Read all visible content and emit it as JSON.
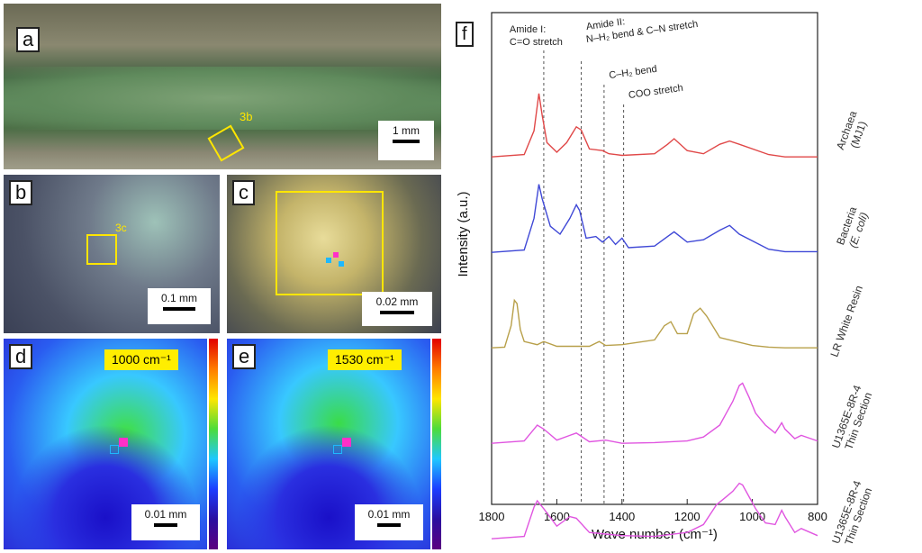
{
  "panels": {
    "a": {
      "label": "a",
      "region_label": "3b",
      "scale": "1 mm"
    },
    "b": {
      "label": "b",
      "region_label": "3c",
      "scale": "0.1 mm"
    },
    "c": {
      "label": "c",
      "scale": "0.02 mm"
    },
    "d": {
      "label": "d",
      "wavenumber": "1000 cm⁻¹",
      "scale": "0.01 mm"
    },
    "e": {
      "label": "e",
      "wavenumber": "1530 cm⁻¹",
      "scale": "0.01 mm"
    }
  },
  "colors": {
    "yellow": "#ffe600",
    "accent_magenta": "#ff2fc8",
    "accent_cyan": "#1eb8ff"
  },
  "chart_data": {
    "type": "line",
    "panel_label": "f",
    "xlabel": "Wave number (cm⁻¹)",
    "ylabel": "Intensity (a.u.)",
    "xlim": [
      1800,
      800
    ],
    "x_ticks": [
      "1800",
      "1600",
      "1400",
      "1200",
      "1000",
      "800"
    ],
    "vlines": [
      {
        "x": 1640,
        "label": "Amide I:\nC=O stretch"
      },
      {
        "x": 1525,
        "label": "Amide II:\nN–H₂ bend & C–N stretch"
      },
      {
        "x": 1455,
        "label": "C–H₂ bend"
      },
      {
        "x": 1395,
        "label": "COO stretch"
      }
    ],
    "series": [
      {
        "name": "Archaea (MJ1)",
        "color": "#e04848",
        "offset": 4,
        "x": [
          1800,
          1700,
          1670,
          1655,
          1645,
          1630,
          1600,
          1570,
          1540,
          1525,
          1500,
          1460,
          1440,
          1420,
          1400,
          1300,
          1260,
          1240,
          1200,
          1150,
          1100,
          1070,
          1040,
          950,
          900,
          800
        ],
        "y": [
          0.02,
          0.05,
          0.35,
          0.82,
          0.55,
          0.2,
          0.08,
          0.2,
          0.4,
          0.36,
          0.12,
          0.1,
          0.06,
          0.05,
          0.04,
          0.06,
          0.18,
          0.25,
          0.1,
          0.06,
          0.18,
          0.22,
          0.18,
          0.05,
          0.02,
          0.02
        ]
      },
      {
        "name": "Bacteria (E. coli)",
        "color": "#3f48d6",
        "offset": 3,
        "x": [
          1800,
          1700,
          1670,
          1655,
          1645,
          1620,
          1590,
          1560,
          1540,
          1530,
          1510,
          1480,
          1460,
          1440,
          1420,
          1400,
          1380,
          1300,
          1260,
          1240,
          1200,
          1150,
          1100,
          1070,
          1040,
          950,
          900,
          800
        ],
        "y": [
          0.02,
          0.05,
          0.45,
          0.88,
          0.7,
          0.35,
          0.25,
          0.45,
          0.62,
          0.55,
          0.2,
          0.22,
          0.15,
          0.22,
          0.12,
          0.2,
          0.08,
          0.1,
          0.22,
          0.28,
          0.15,
          0.18,
          0.3,
          0.36,
          0.25,
          0.06,
          0.03,
          0.03
        ]
      },
      {
        "name": "LR White Resin",
        "color": "#b8a04a",
        "offset": 2,
        "x": [
          1800,
          1760,
          1740,
          1730,
          1722,
          1712,
          1700,
          1660,
          1640,
          1600,
          1500,
          1470,
          1450,
          1400,
          1300,
          1270,
          1250,
          1230,
          1200,
          1180,
          1160,
          1140,
          1100,
          1050,
          1000,
          950,
          900,
          800
        ],
        "y": [
          0.02,
          0.03,
          0.3,
          0.62,
          0.58,
          0.25,
          0.1,
          0.06,
          0.1,
          0.04,
          0.04,
          0.1,
          0.05,
          0.06,
          0.12,
          0.3,
          0.35,
          0.2,
          0.2,
          0.45,
          0.52,
          0.42,
          0.15,
          0.1,
          0.05,
          0.03,
          0.02,
          0.02
        ]
      },
      {
        "name": "U1365E-8R-4 Thin Section",
        "color": "#e055e0",
        "offset": 1,
        "x": [
          1800,
          1700,
          1670,
          1660,
          1640,
          1600,
          1560,
          1540,
          1500,
          1450,
          1400,
          1300,
          1200,
          1150,
          1100,
          1080,
          1060,
          1040,
          1030,
          1010,
          990,
          960,
          930,
          910,
          900,
          870,
          850,
          800
        ],
        "y": [
          0.02,
          0.05,
          0.2,
          0.25,
          0.2,
          0.06,
          0.12,
          0.15,
          0.04,
          0.06,
          0.02,
          0.03,
          0.05,
          0.1,
          0.25,
          0.4,
          0.55,
          0.75,
          0.78,
          0.6,
          0.4,
          0.25,
          0.15,
          0.28,
          0.2,
          0.08,
          0.12,
          0.05
        ]
      },
      {
        "name": "U1365E-8R-4 Thin Section",
        "color": "#e055e0",
        "offset": 0,
        "x": [
          1800,
          1700,
          1670,
          1660,
          1640,
          1600,
          1560,
          1540,
          1500,
          1450,
          1400,
          1300,
          1200,
          1150,
          1110,
          1080,
          1060,
          1040,
          1030,
          1010,
          990,
          960,
          930,
          910,
          900,
          870,
          850,
          800
        ],
        "y": [
          0.02,
          0.05,
          0.42,
          0.5,
          0.4,
          0.18,
          0.3,
          0.28,
          0.1,
          0.08,
          0.06,
          0.05,
          0.1,
          0.2,
          0.45,
          0.55,
          0.62,
          0.72,
          0.7,
          0.55,
          0.4,
          0.22,
          0.2,
          0.38,
          0.3,
          0.1,
          0.15,
          0.06
        ]
      }
    ],
    "series_labels": [
      {
        "line1": "Archaea",
        "line2": "(MJ1)"
      },
      {
        "line1": "Bacteria",
        "line2": "(E. coli)"
      },
      {
        "line1": "LR White Resin",
        "line2": ""
      },
      {
        "line1": "U1365E-8R-4",
        "line2": "Thin Section"
      },
      {
        "line1": "U1365E-8R-4",
        "line2": "Thin Section"
      }
    ]
  }
}
